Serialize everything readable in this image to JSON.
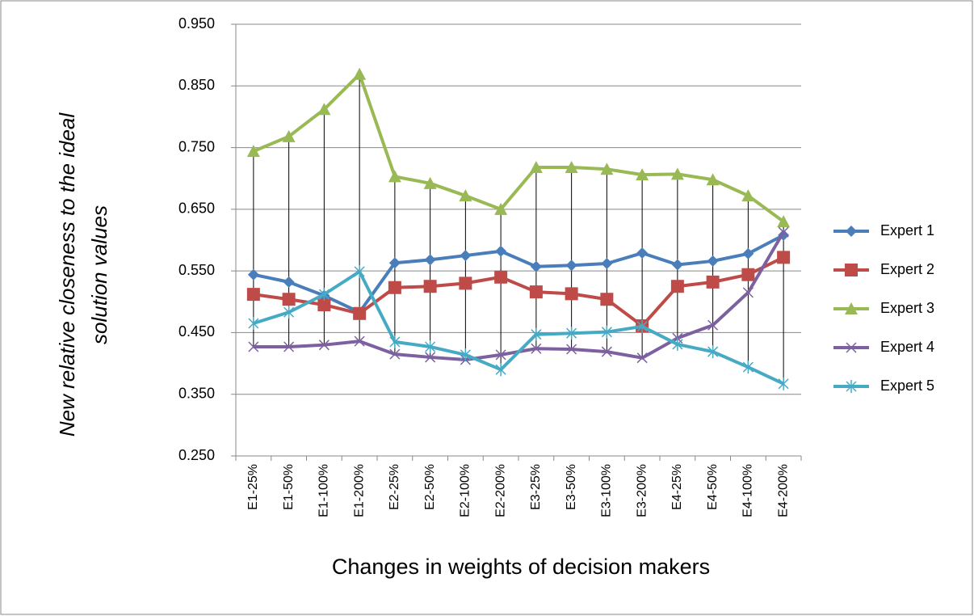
{
  "chart_data": {
    "type": "line",
    "x_label": "Changes in weights of decision makers",
    "y_label": [
      "New relative closeness to the ideal",
      "solution values"
    ],
    "categories": [
      "E1-25%",
      "E1-50%",
      "E1-100%",
      "E1-200%",
      "E2-25%",
      "E2-50%",
      "E2-100%",
      "E2-200%",
      "E3-25%",
      "E3-50%",
      "E3-100%",
      "E3-200%",
      "E4-25%",
      "E4-50%",
      "E4-100%",
      "E4-200%"
    ],
    "series": [
      {
        "name": "Expert 1",
        "color": "#4a7ebb",
        "marker": "diamond",
        "values": [
          0.544,
          0.532,
          0.51,
          0.483,
          0.563,
          0.568,
          0.575,
          0.582,
          0.557,
          0.559,
          0.562,
          0.579,
          0.56,
          0.566,
          0.578,
          0.608
        ]
      },
      {
        "name": "Expert 2",
        "color": "#be4b48",
        "marker": "square",
        "values": [
          0.512,
          0.504,
          0.495,
          0.481,
          0.523,
          0.525,
          0.53,
          0.54,
          0.516,
          0.513,
          0.504,
          0.461,
          0.525,
          0.532,
          0.544,
          0.572
        ]
      },
      {
        "name": "Expert 3",
        "color": "#98b954",
        "marker": "triangle",
        "values": [
          0.744,
          0.768,
          0.812,
          0.869,
          0.703,
          0.692,
          0.672,
          0.65,
          0.718,
          0.718,
          0.715,
          0.706,
          0.707,
          0.698,
          0.672,
          0.63
        ]
      },
      {
        "name": "Expert 4",
        "color": "#7d60a0",
        "marker": "x",
        "values": [
          0.427,
          0.427,
          0.43,
          0.436,
          0.415,
          0.41,
          0.406,
          0.414,
          0.424,
          0.423,
          0.419,
          0.409,
          0.441,
          0.462,
          0.515,
          0.613
        ]
      },
      {
        "name": "Expert 5",
        "color": "#46aac5",
        "marker": "star",
        "values": [
          0.465,
          0.483,
          0.512,
          0.549,
          0.435,
          0.427,
          0.414,
          0.39,
          0.447,
          0.449,
          0.451,
          0.46,
          0.431,
          0.419,
          0.394,
          0.367
        ]
      }
    ],
    "ylim": [
      0.25,
      0.95
    ],
    "yticks": [
      {
        "value": 0.25,
        "label": "0.250"
      },
      {
        "value": 0.35,
        "label": "0.350"
      },
      {
        "value": 0.45,
        "label": "0.450"
      },
      {
        "value": 0.55,
        "label": "0.550"
      },
      {
        "value": 0.65,
        "label": "0.650"
      },
      {
        "value": 0.75,
        "label": "0.750"
      },
      {
        "value": 0.85,
        "label": "0.850"
      },
      {
        "value": 0.95,
        "label": "0.950"
      }
    ],
    "grid": true,
    "hi_lo_lines": true,
    "legend": "right"
  }
}
